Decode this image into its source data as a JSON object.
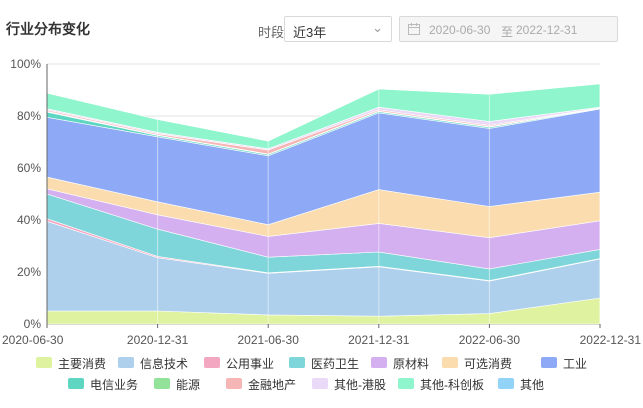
{
  "header": {
    "title": "行业分布变化",
    "period_label": "时段",
    "period_value": "近3年",
    "date_start": "2020-06-30",
    "date_sep": "至",
    "date_end": "2022-12-31"
  },
  "colors": {
    "主要消费": "#dff2a0",
    "信息技术": "#aed0ec",
    "公用事业": "#f4a7c0",
    "医药卫生": "#7fd6da",
    "原材料": "#d5b0f0",
    "可选消费": "#fbdcae",
    "工业": "#8eaaf6",
    "电信业务": "#5fd6c2",
    "能源": "#93e29a",
    "金融地产": "#f6b6b6",
    "其他-港股": "#ebdaf7",
    "其他-科创板": "#8ff5cd",
    "其他": "#92d3f8"
  },
  "chart_data": {
    "type": "area",
    "stacked": true,
    "x": [
      "2020-06-30",
      "2020-12-31",
      "2021-06-30",
      "2021-12-31",
      "2022-06-30",
      "2022-12-31"
    ],
    "ylim": [
      0,
      100
    ],
    "yticks": [
      "0%",
      "20%",
      "40%",
      "60%",
      "80%",
      "100%"
    ],
    "grid": true,
    "legend_position": "bottom",
    "series": [
      {
        "name": "主要消费",
        "values": [
          5,
          5,
          3.5,
          3,
          4,
          10
        ]
      },
      {
        "name": "信息技术",
        "values": [
          34.5,
          20.5,
          16,
          19,
          12.5,
          15
        ]
      },
      {
        "name": "公用事业",
        "values": [
          1,
          0.5,
          0.2,
          0.2,
          0.2,
          0.2
        ]
      },
      {
        "name": "医药卫生",
        "values": [
          9.5,
          10.5,
          6,
          5.5,
          4.5,
          3.5
        ]
      },
      {
        "name": "原材料",
        "values": [
          2,
          5.5,
          8,
          11,
          12,
          11
        ]
      },
      {
        "name": "可选消费",
        "values": [
          4.5,
          5,
          4.5,
          13,
          12,
          11
        ]
      },
      {
        "name": "工业",
        "values": [
          23,
          25,
          26.5,
          29.5,
          30,
          32
        ]
      },
      {
        "name": "电信业务",
        "values": [
          2,
          0.5,
          0.5,
          0.5,
          0.5,
          0.2
        ]
      },
      {
        "name": "能源",
        "values": [
          0.3,
          0.2,
          0.2,
          0.2,
          0.2,
          0.1
        ]
      },
      {
        "name": "金融地产",
        "values": [
          0.5,
          0.5,
          1.5,
          0.5,
          0.5,
          0.1
        ]
      },
      {
        "name": "其他-港股",
        "values": [
          0.5,
          0.5,
          0.5,
          1,
          1.5,
          0.3
        ]
      },
      {
        "name": "其他-科创板",
        "values": [
          6,
          5,
          3,
          7,
          10.5,
          9
        ]
      },
      {
        "name": "其他",
        "values": [
          0,
          0,
          0,
          0,
          0,
          0
        ]
      }
    ]
  }
}
